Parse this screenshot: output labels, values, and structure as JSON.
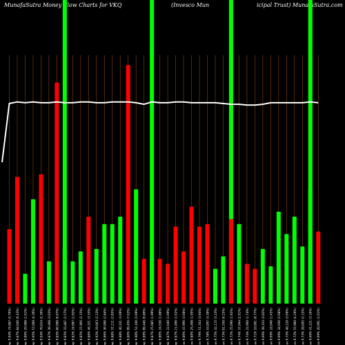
{
  "header": {
    "left": "MunafaSutra  Money Flow  Charts for VKQ",
    "middle": "(Invesco  Mun",
    "right": "icipal Trust) MunafaSutra.com"
  },
  "colors": {
    "background": "#000000",
    "up": "#00ff00",
    "down": "#ff0000",
    "grid": "#8b4513",
    "line": "#ffffff"
  },
  "chart_data": {
    "type": "bar",
    "title": "MunafaSutra  Money Flow  Charts for VKQ (Invesco  Municipal Trust) MunafaSutra.com",
    "categories": [
      "Wed 31 Dec 9.94% 74,887 (5.76%)",
      "Tue 30 Dec 9.87% 84,040 (6.43%)",
      "Mon 29 Dec 9.86% 20,988 (1.61%)",
      "Fri 26 Dec 9.95% 57,009 (4.36%)",
      "Wed 24 Dec 9.94% 70,024 (5.36%)",
      "Tue 23 Dec 9.87% 39,498 (3.03%)",
      "Mon 22 Dec 9.85% 86,990 (6.67%)",
      "Fri 19 Dec 9.85% 33,487 (2.57%)",
      "Thu 18 Dec 9.82% 24,997 (1.92%)",
      "Wed 17 Dec 9.85% 27,966 (2.15%)",
      "Tue 16 Dec 9.86% 46,321 (3.55%)",
      "Mon 15 Dec 9.92% 29,063 (2.23%)",
      "Fri 12 Dec 9.86% 36,990 (2.84%)",
      "Thu 11 Dec 9.88% 37,211 (2.85%)",
      "Wed 10 Dec 9.88% 40,331 (3.09%)",
      "Tue 09 Dec 9.86% 99,456 (7.62%)",
      "Mon 08 Dec 9.90% 52,100 (3.99%)",
      "Fri 05 Dec 9.89% 89,440 (6.86%)",
      "Thu 04 Dec 9.87% 25,985 (1.99%)",
      "Wed 03 Dec 9.86% 24,530 (1.88%)",
      "Tue 02 Dec 9.87% 22,040 (1.69%)",
      "Mon 01 Dec 9.87% 21,096 (1.62%)",
      "Fri 28 Nov 9.86% 47,966 (3.68%)",
      "Wed 26 Nov 9.80% 25,498 (1.95%)",
      "Tue 25 Nov 9.79% 51,344 (3.94%)",
      "Mon 24 Nov 9.78% 43,097 (3.30%)",
      "Fri 21 Nov 9.75% 42,115 (3.23%)",
      "Thu 20 Nov 9.73% 81,550 (6.25%)",
      "Wed 19 Nov 9.72% 25,090 (1.92%)",
      "Tue 18 Nov 9.74% 37,944 (2.91%)",
      "Mon 17 Nov 9.74% 22,660 (1.74%)",
      "Fri 14 Nov 9.71% 10,001 (0.77%)",
      "Thu 13 Nov 9.69% 39,333 (3.02%)",
      "Wed 12 Nov 9.69% 18,940 (1.45%)",
      "Mon 10 Nov 9.69% 34,930 (2.68%)",
      "Fri 07 Nov 9.75% 48,120 (3.69%)",
      "Thu 06 Nov 9.72% 55,980 (4.29%)",
      "Wed 05 Nov 9.73% 28,095 (2.15%)",
      "Tue 04 Nov 9.69% 41,221 (3.16%)",
      "Mon 03 Nov 9.69% 20,991 (1.61%)"
    ],
    "bar_values": [
      30,
      51,
      12,
      42,
      52,
      17,
      89,
      22,
      17,
      21,
      35,
      22,
      32,
      32,
      35,
      96,
      46,
      18,
      18,
      18,
      16,
      31,
      21,
      39,
      31,
      32,
      14,
      19,
      34,
      32,
      16,
      14,
      22,
      15,
      37,
      28,
      35,
      23,
      46,
      29
    ],
    "bar_colors": [
      "down",
      "down",
      "up",
      "up",
      "down",
      "up",
      "down",
      "up",
      "up",
      "up",
      "down",
      "up",
      "up",
      "up",
      "up",
      "down",
      "up",
      "down",
      "up",
      "down",
      "down",
      "down",
      "down",
      "down",
      "down",
      "down",
      "up",
      "up",
      "down",
      "up",
      "down",
      "down",
      "up",
      "up",
      "up",
      "up",
      "up",
      "up",
      "up",
      "down"
    ],
    "highlight_bars": [
      7,
      18,
      28,
      38
    ],
    "line_values": [
      100,
      102,
      101,
      102,
      101,
      101,
      102,
      101,
      101,
      102,
      102,
      101,
      101,
      102,
      102,
      102,
      101,
      99,
      102,
      101,
      101,
      102,
      102,
      101,
      101,
      101,
      101,
      100,
      99,
      99,
      98,
      98,
      99,
      101,
      101,
      101,
      101,
      101,
      102,
      101
    ],
    "line_start_value": 26,
    "ylim": [
      0,
      100
    ],
    "grid": true
  }
}
